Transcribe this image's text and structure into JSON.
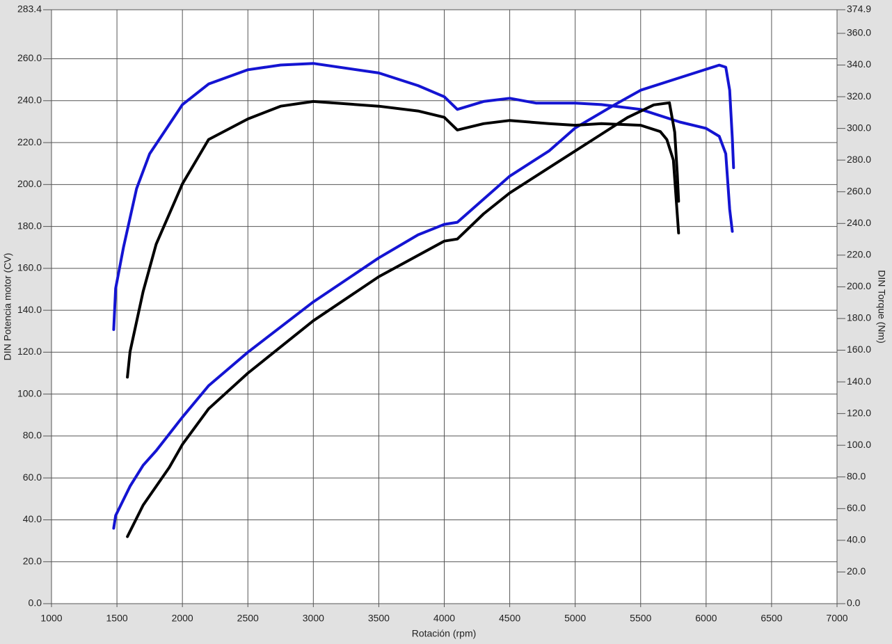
{
  "chart_data": {
    "type": "line",
    "xlabel": "Rotación (rpm)",
    "ylabel": "DIN Potencia motor (CV)",
    "y2label": "DIN Torque (Nm)",
    "grid": true,
    "xlim": [
      1000,
      7000
    ],
    "xticks": [
      1000,
      1500,
      2000,
      2500,
      3000,
      3500,
      4000,
      4500,
      5000,
      5500,
      6000,
      6500,
      7000
    ],
    "ylim": [
      0,
      283.4
    ],
    "yticks": [
      {
        "value": 0,
        "label": "0.0"
      },
      {
        "value": 20,
        "label": "20.0"
      },
      {
        "value": 40,
        "label": "40.0"
      },
      {
        "value": 60,
        "label": "60.0"
      },
      {
        "value": 80,
        "label": "80.0"
      },
      {
        "value": 100,
        "label": "100.0"
      },
      {
        "value": 120,
        "label": "120.0"
      },
      {
        "value": 140,
        "label": "140.0"
      },
      {
        "value": 160,
        "label": "160.0"
      },
      {
        "value": 180,
        "label": "180.0"
      },
      {
        "value": 200,
        "label": "200.0"
      },
      {
        "value": 220,
        "label": "220.0"
      },
      {
        "value": 240,
        "label": "240.0"
      },
      {
        "value": 260,
        "label": "260.0"
      },
      283.4
    ],
    "y2lim": [
      0,
      374.9
    ],
    "y2ticks": [
      {
        "value": 0,
        "label": "0.0"
      },
      {
        "value": 20,
        "label": "20.0"
      },
      {
        "value": 40,
        "label": "40.0"
      },
      {
        "value": 60,
        "label": "60.0"
      },
      {
        "value": 80,
        "label": "80.0"
      },
      {
        "value": 100,
        "label": "100.0"
      },
      {
        "value": 120,
        "label": "120.0"
      },
      {
        "value": 140,
        "label": "140.0"
      },
      {
        "value": 160,
        "label": "160.0"
      },
      {
        "value": 180,
        "label": "180.0"
      },
      {
        "value": 200,
        "label": "200.0"
      },
      {
        "value": 220,
        "label": "220.0"
      },
      {
        "value": 240,
        "label": "240.0"
      },
      {
        "value": 260,
        "label": "260.0"
      },
      {
        "value": 280,
        "label": "280.0"
      },
      {
        "value": 300,
        "label": "300.0"
      },
      {
        "value": 320,
        "label": "320.0"
      },
      {
        "value": 340,
        "label": "340.0"
      },
      {
        "value": 360,
        "label": "360.0"
      },
      374.9
    ],
    "series": [
      {
        "color": "#1414d2",
        "axis": "y",
        "x": [
          1475,
          1490,
          1600,
          1700,
          1800,
          2000,
          2200,
          2500,
          3000,
          3500,
          3800,
          4000,
          4100,
          4300,
          4500,
          4800,
          5000,
          5300,
          5500,
          5800,
          6000,
          6100,
          6150,
          6180,
          6200,
          6210
        ],
        "values": [
          36,
          42,
          56,
          66,
          73,
          89,
          104,
          120,
          144,
          165,
          176,
          181,
          182,
          193,
          204,
          216,
          227,
          238,
          245,
          251,
          255,
          257,
          256,
          245,
          222,
          208
        ]
      },
      {
        "color": "#1414d2",
        "axis": "y2",
        "x": [
          1475,
          1490,
          1550,
          1650,
          1750,
          2000,
          2200,
          2500,
          2750,
          3000,
          3500,
          3800,
          4000,
          4100,
          4300,
          4500,
          4700,
          5000,
          5200,
          5500,
          5800,
          6000,
          6100,
          6150,
          6180,
          6200
        ],
        "values": [
          173,
          199,
          225,
          262,
          284,
          315,
          328,
          337,
          340,
          341,
          335,
          327,
          320,
          312,
          317,
          319,
          316,
          316,
          315,
          312,
          304,
          300,
          295,
          284,
          249,
          235
        ]
      },
      {
        "color": "#000000",
        "axis": "y",
        "x": [
          1580,
          1700,
          1900,
          2000,
          2200,
          2500,
          3000,
          3500,
          4000,
          4100,
          4300,
          4500,
          4800,
          5000,
          5200,
          5400,
          5600,
          5720,
          5760,
          5780,
          5790
        ],
        "values": [
          32,
          47,
          65,
          76,
          93,
          110,
          135,
          156,
          173,
          174,
          186,
          196,
          208,
          216,
          224,
          232,
          238,
          239,
          225,
          205,
          192
        ]
      },
      {
        "color": "#000000",
        "axis": "y2",
        "x": [
          1580,
          1600,
          1700,
          1800,
          2000,
          2200,
          2500,
          2750,
          3000,
          3500,
          3800,
          4000,
          4100,
          4300,
          4500,
          4800,
          5000,
          5200,
          5500,
          5650,
          5700,
          5750,
          5790
        ],
        "values": [
          143,
          159,
          197,
          227,
          265,
          293,
          306,
          314,
          317,
          314,
          311,
          307,
          299,
          303,
          305,
          303,
          302,
          303,
          302,
          298,
          293,
          280,
          234
        ]
      }
    ]
  }
}
